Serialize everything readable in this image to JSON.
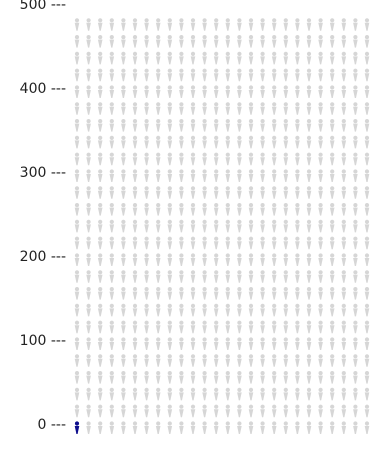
{
  "chart_data": {
    "type": "pictogram",
    "y_ticks": [
      {
        "value": 0,
        "label": "0 ---"
      },
      {
        "value": 100,
        "label": "100 ---"
      },
      {
        "value": 200,
        "label": "200 ---"
      },
      {
        "value": 300,
        "label": "300 ---"
      },
      {
        "value": 400,
        "label": "400 ---"
      },
      {
        "value": 500,
        "label": "500 ---"
      }
    ],
    "ylim": [
      0,
      500
    ],
    "highlighted_count": 1,
    "columns": 26,
    "rows": 25,
    "colors": {
      "highlight": "#0d0d8c",
      "background_icon": "#d6d6d6"
    },
    "icon": "person-icon"
  }
}
